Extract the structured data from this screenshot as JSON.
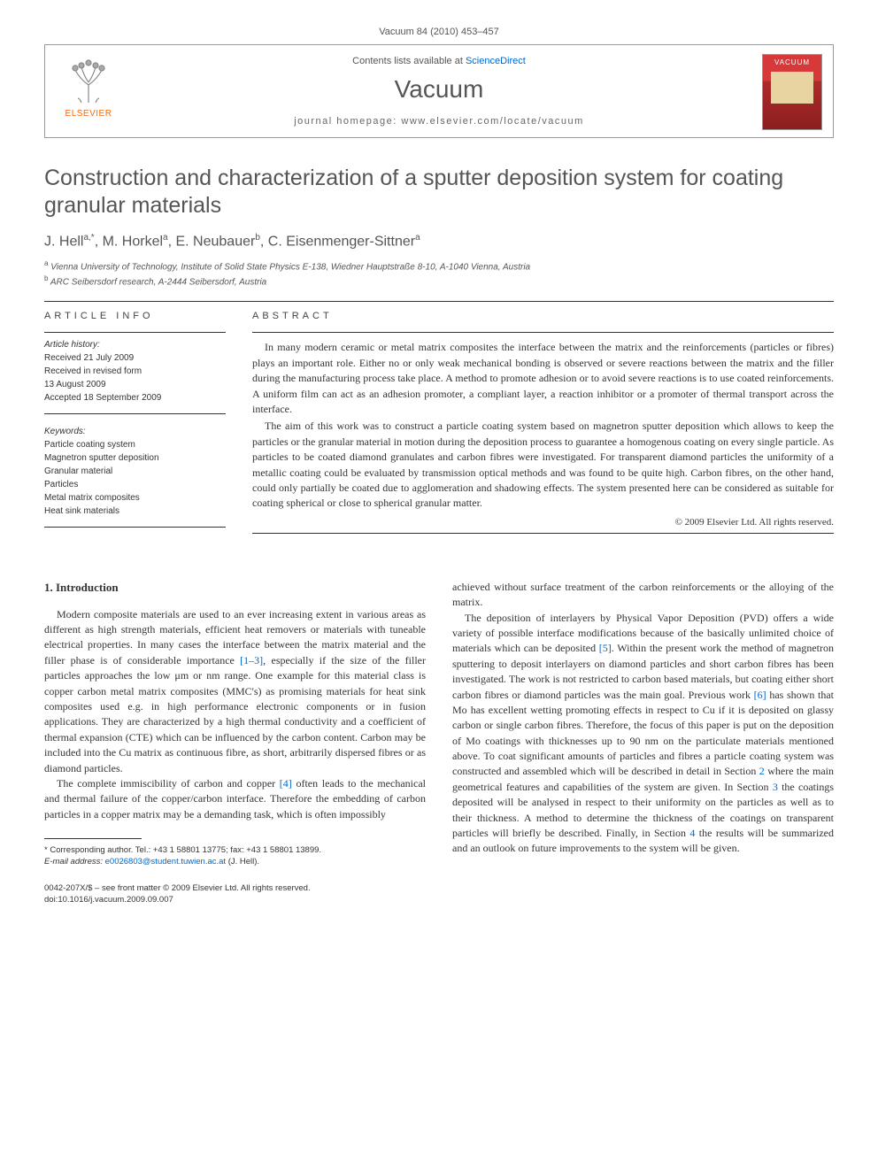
{
  "journal_bar": "Vacuum 84 (2010) 453–457",
  "header": {
    "contents_prefix": "Contents lists available at ",
    "contents_link": "ScienceDirect",
    "journal_name": "Vacuum",
    "homepage_prefix": "journal homepage: ",
    "homepage_url": "www.elsevier.com/locate/vacuum",
    "publisher_logo_text": "ELSEVIER",
    "cover_title": "VACUUM"
  },
  "title": "Construction and characterization of a sputter deposition system for coating granular materials",
  "authors_html": "J. Hell<sup>a,*</sup>, M. Horkel<sup>a</sup>, E. Neubauer<sup>b</sup>, C. Eisenmenger-Sittner<sup>a</sup>",
  "affiliations": [
    {
      "sup": "a",
      "text": "Vienna University of Technology, Institute of Solid State Physics E-138, Wiedner Hauptstraße 8-10, A-1040 Vienna, Austria"
    },
    {
      "sup": "b",
      "text": "ARC Seibersdorf research, A-2444 Seibersdorf, Austria"
    }
  ],
  "article_info_label": "ARTICLE INFO",
  "abstract_label": "ABSTRACT",
  "history": {
    "head": "Article history:",
    "lines": [
      "Received 21 July 2009",
      "Received in revised form",
      "13 August 2009",
      "Accepted 18 September 2009"
    ]
  },
  "keywords": {
    "head": "Keywords:",
    "items": [
      "Particle coating system",
      "Magnetron sputter deposition",
      "Granular material",
      "Particles",
      "Metal matrix composites",
      "Heat sink materials"
    ]
  },
  "abstract": {
    "p1": "In many modern ceramic or metal matrix composites the interface between the matrix and the reinforcements (particles or fibres) plays an important role. Either no or only weak mechanical bonding is observed or severe reactions between the matrix and the filler during the manufacturing process take place. A method to promote adhesion or to avoid severe reactions is to use coated reinforcements. A uniform film can act as an adhesion promoter, a compliant layer, a reaction inhibitor or a promoter of thermal transport across the interface.",
    "p2": "The aim of this work was to construct a particle coating system based on magnetron sputter deposition which allows to keep the particles or the granular material in motion during the deposition process to guarantee a homogenous coating on every single particle. As particles to be coated diamond granulates and carbon fibres were investigated. For transparent diamond particles the uniformity of a metallic coating could be evaluated by transmission optical methods and was found to be quite high. Carbon fibres, on the other hand, could only partially be coated due to agglomeration and shadowing effects. The system presented here can be considered as suitable for coating spherical or close to spherical granular matter.",
    "copyright": "© 2009 Elsevier Ltd. All rights reserved."
  },
  "section1_head": "1. Introduction",
  "col_left": {
    "p1_a": "Modern composite materials are used to an ever increasing extent in various areas as different as high strength materials, efficient heat removers or materials with tuneable electrical properties. In many cases the interface between the matrix material and the filler phase is of considerable importance ",
    "p1_ref1": "[1–3]",
    "p1_b": ", especially if the size of the filler particles approaches the low μm or nm range. One example for this material class is copper carbon metal matrix composites (MMC's) as promising materials for heat sink composites used e.g. in high performance electronic components or in fusion applications. They are characterized by a high thermal conductivity and a coefficient of thermal expansion (CTE) which can be influenced by the carbon content. Carbon may be included into the Cu matrix as continuous fibre, as short, arbitrarily dispersed fibres or as diamond particles.",
    "p2_a": "The complete immiscibility of carbon and copper ",
    "p2_ref": "[4]",
    "p2_b": " often leads to the mechanical and thermal failure of the copper/carbon interface. Therefore the embedding of carbon particles in a copper matrix may be a demanding task, which is often impossibly"
  },
  "col_right": {
    "p1": "achieved without surface treatment of the carbon reinforcements or the alloying of the matrix.",
    "p2_a": "The deposition of interlayers by Physical Vapor Deposition (PVD) offers a wide variety of possible interface modifications because of the basically unlimited choice of materials which can be deposited ",
    "p2_ref5": "[5]",
    "p2_b": ". Within the present work the method of magnetron sputtering to deposit interlayers on diamond particles and short carbon fibres has been investigated. The work is not restricted to carbon based materials, but coating either short carbon fibres or diamond particles was the main goal. Previous work ",
    "p2_ref6": "[6]",
    "p2_c": " has shown that Mo has excellent wetting promoting effects in respect to Cu if it is deposited on glassy carbon or single carbon fibres. Therefore, the focus of this paper is put on the deposition of Mo coatings with thicknesses up to 90 nm on the particulate materials mentioned above. To coat significant amounts of particles and fibres a particle coating system was constructed and assembled which will be described in detail in Section ",
    "p2_sec2": "2",
    "p2_d": " where the main geometrical features and capabilities of the system are given. In Section ",
    "p2_sec3": "3",
    "p2_e": " the coatings deposited will be analysed in respect to their uniformity on the particles as well as to their thickness. A method to determine the thickness of the coatings on transparent particles will briefly be described. Finally, in Section ",
    "p2_sec4": "4",
    "p2_f": " the results will be summarized and an outlook on future improvements to the system will be given."
  },
  "footnote": {
    "corr": "* Corresponding author. Tel.: +43 1 58801 13775; fax: +43 1 58801 13899.",
    "email_label": "E-mail address: ",
    "email": "e0026803@student.tuwien.ac.at",
    "email_who": " (J. Hell)."
  },
  "bottom": {
    "line1": "0042-207X/$ – see front matter © 2009 Elsevier Ltd. All rights reserved.",
    "line2": "doi:10.1016/j.vacuum.2009.09.007"
  },
  "colors": {
    "link": "#0066cc",
    "publisher": "#ff6600",
    "cover_bg_top": "#d63939",
    "cover_bg_bottom": "#8a1f1f"
  }
}
